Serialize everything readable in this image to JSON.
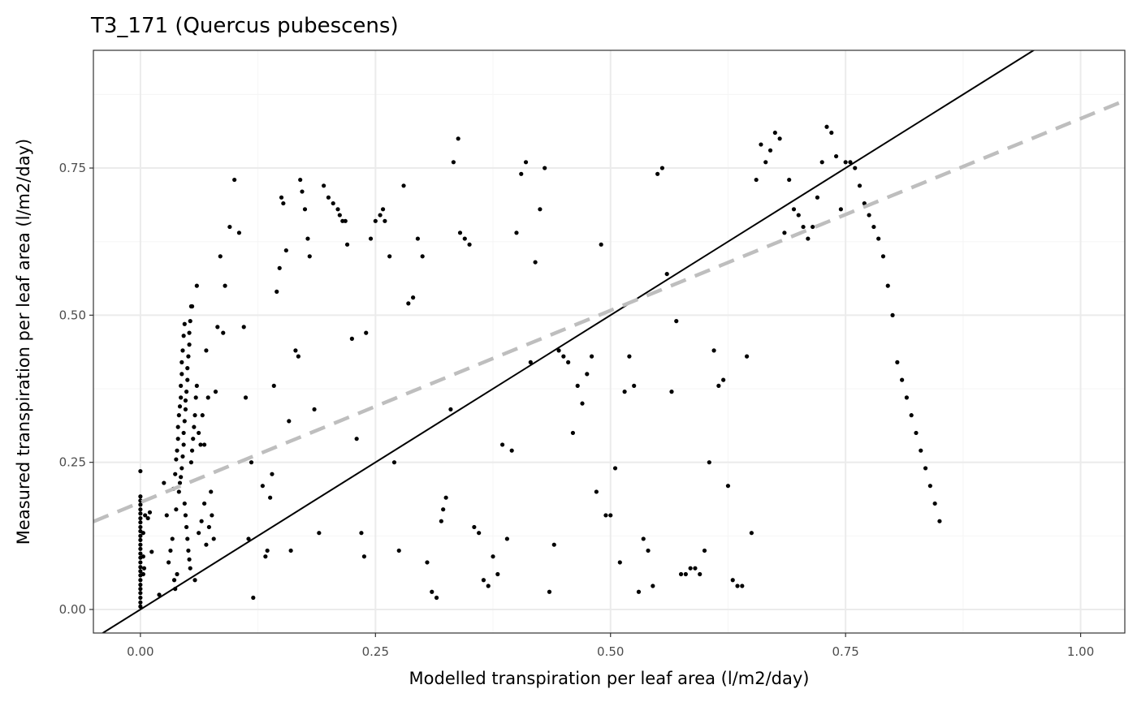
{
  "chart_data": {
    "type": "scatter",
    "title": "T3_171 (Quercus pubescens)",
    "xlabel": "Modelled transpiration per leaf area (l/m2/day)",
    "ylabel": "Measured transpiration per leaf area (l/m2/day)",
    "xlim": [
      -0.05,
      1.047
    ],
    "ylim": [
      -0.04,
      0.95
    ],
    "x_ticks": [
      0.0,
      0.25,
      0.5,
      0.75,
      1.0
    ],
    "x_tick_labels": [
      "0.00",
      "0.25",
      "0.50",
      "0.75",
      "1.00"
    ],
    "y_ticks": [
      0.0,
      0.25,
      0.5,
      0.75
    ],
    "y_tick_labels": [
      "0.00",
      "0.25",
      "0.50",
      "0.75"
    ],
    "grid": true,
    "colors": {
      "points": "#000000",
      "identity_line": "#000000",
      "fit_line": "#bebebe",
      "grid_major": "#ebebeb",
      "grid_minor": "#f5f5f5",
      "panel_border": "#333333"
    },
    "reference_lines": [
      {
        "kind": "identity",
        "style": "solid",
        "intercept": 0.0,
        "slope": 1.0
      },
      {
        "kind": "linear-fit",
        "style": "dashed",
        "intercept": 0.182,
        "slope": 0.652
      }
    ],
    "points": [
      [
        0,
        0.005
      ],
      [
        0,
        0.012
      ],
      [
        0,
        0.02
      ],
      [
        0,
        0.028
      ],
      [
        0,
        0.035
      ],
      [
        0,
        0.042
      ],
      [
        0,
        0.05
      ],
      [
        0,
        0.058
      ],
      [
        0,
        0.065
      ],
      [
        0,
        0.072
      ],
      [
        0,
        0.08
      ],
      [
        0,
        0.088
      ],
      [
        0,
        0.095
      ],
      [
        0,
        0.103
      ],
      [
        0,
        0.11
      ],
      [
        0,
        0.118
      ],
      [
        0,
        0.125
      ],
      [
        0,
        0.133
      ],
      [
        0,
        0.14
      ],
      [
        0,
        0.148
      ],
      [
        0,
        0.155
      ],
      [
        0,
        0.163
      ],
      [
        0,
        0.17
      ],
      [
        0,
        0.178
      ],
      [
        0,
        0.185
      ],
      [
        0,
        0.192
      ],
      [
        0,
        0.235
      ],
      [
        0.003,
        0.06
      ],
      [
        0.003,
        0.09
      ],
      [
        0.003,
        0.13
      ],
      [
        0.005,
        0.16
      ],
      [
        0.004,
        0.07
      ],
      [
        0.008,
        0.155
      ],
      [
        0.01,
        0.165
      ],
      [
        0.012,
        0.098
      ],
      [
        0.02,
        0.025
      ],
      [
        0.025,
        0.215
      ],
      [
        0.028,
        0.16
      ],
      [
        0.03,
        0.08
      ],
      [
        0.032,
        0.1
      ],
      [
        0.034,
        0.12
      ],
      [
        0.036,
        0.05
      ],
      [
        0.037,
        0.035
      ],
      [
        0.038,
        0.17
      ],
      [
        0.039,
        0.06
      ],
      [
        0.035,
        0.205
      ],
      [
        0.037,
        0.23
      ],
      [
        0.038,
        0.255
      ],
      [
        0.039,
        0.27
      ],
      [
        0.04,
        0.29
      ],
      [
        0.04,
        0.31
      ],
      [
        0.041,
        0.33
      ],
      [
        0.042,
        0.345
      ],
      [
        0.043,
        0.36
      ],
      [
        0.043,
        0.38
      ],
      [
        0.044,
        0.4
      ],
      [
        0.044,
        0.42
      ],
      [
        0.045,
        0.44
      ],
      [
        0.046,
        0.465
      ],
      [
        0.047,
        0.485
      ],
      [
        0.041,
        0.2
      ],
      [
        0.042,
        0.215
      ],
      [
        0.043,
        0.225
      ],
      [
        0.044,
        0.24
      ],
      [
        0.045,
        0.26
      ],
      [
        0.046,
        0.28
      ],
      [
        0.046,
        0.3
      ],
      [
        0.047,
        0.32
      ],
      [
        0.048,
        0.34
      ],
      [
        0.048,
        0.355
      ],
      [
        0.049,
        0.37
      ],
      [
        0.05,
        0.39
      ],
      [
        0.05,
        0.41
      ],
      [
        0.051,
        0.43
      ],
      [
        0.052,
        0.45
      ],
      [
        0.052,
        0.47
      ],
      [
        0.053,
        0.49
      ],
      [
        0.054,
        0.515
      ],
      [
        0.055,
        0.515
      ],
      [
        0.047,
        0.18
      ],
      [
        0.048,
        0.16
      ],
      [
        0.049,
        0.14
      ],
      [
        0.05,
        0.12
      ],
      [
        0.051,
        0.1
      ],
      [
        0.052,
        0.085
      ],
      [
        0.053,
        0.07
      ],
      [
        0.054,
        0.25
      ],
      [
        0.055,
        0.27
      ],
      [
        0.056,
        0.29
      ],
      [
        0.057,
        0.31
      ],
      [
        0.058,
        0.33
      ],
      [
        0.059,
        0.36
      ],
      [
        0.06,
        0.38
      ],
      [
        0.06,
        0.55
      ],
      [
        0.062,
        0.3
      ],
      [
        0.064,
        0.28
      ],
      [
        0.066,
        0.33
      ],
      [
        0.068,
        0.28
      ],
      [
        0.07,
        0.44
      ],
      [
        0.072,
        0.36
      ],
      [
        0.075,
        0.2
      ],
      [
        0.078,
        0.12
      ],
      [
        0.08,
        0.37
      ],
      [
        0.082,
        0.48
      ],
      [
        0.085,
        0.6
      ],
      [
        0.088,
        0.47
      ],
      [
        0.09,
        0.55
      ],
      [
        0.058,
        0.05
      ],
      [
        0.062,
        0.13
      ],
      [
        0.065,
        0.15
      ],
      [
        0.068,
        0.18
      ],
      [
        0.07,
        0.11
      ],
      [
        0.073,
        0.14
      ],
      [
        0.076,
        0.16
      ],
      [
        0.095,
        0.65
      ],
      [
        0.1,
        0.73
      ],
      [
        0.105,
        0.64
      ],
      [
        0.11,
        0.48
      ],
      [
        0.112,
        0.36
      ],
      [
        0.115,
        0.12
      ],
      [
        0.118,
        0.25
      ],
      [
        0.12,
        0.02
      ],
      [
        0.13,
        0.21
      ],
      [
        0.133,
        0.09
      ],
      [
        0.135,
        0.1
      ],
      [
        0.138,
        0.19
      ],
      [
        0.14,
        0.23
      ],
      [
        0.142,
        0.38
      ],
      [
        0.145,
        0.54
      ],
      [
        0.148,
        0.58
      ],
      [
        0.15,
        0.7
      ],
      [
        0.152,
        0.69
      ],
      [
        0.155,
        0.61
      ],
      [
        0.158,
        0.32
      ],
      [
        0.16,
        0.1
      ],
      [
        0.165,
        0.44
      ],
      [
        0.168,
        0.43
      ],
      [
        0.17,
        0.73
      ],
      [
        0.172,
        0.71
      ],
      [
        0.175,
        0.68
      ],
      [
        0.178,
        0.63
      ],
      [
        0.18,
        0.6
      ],
      [
        0.185,
        0.34
      ],
      [
        0.19,
        0.13
      ],
      [
        0.195,
        0.72
      ],
      [
        0.2,
        0.7
      ],
      [
        0.205,
        0.69
      ],
      [
        0.21,
        0.68
      ],
      [
        0.212,
        0.67
      ],
      [
        0.215,
        0.66
      ],
      [
        0.218,
        0.66
      ],
      [
        0.22,
        0.62
      ],
      [
        0.225,
        0.46
      ],
      [
        0.23,
        0.29
      ],
      [
        0.235,
        0.13
      ],
      [
        0.238,
        0.09
      ],
      [
        0.24,
        0.47
      ],
      [
        0.245,
        0.63
      ],
      [
        0.25,
        0.66
      ],
      [
        0.255,
        0.67
      ],
      [
        0.258,
        0.68
      ],
      [
        0.26,
        0.66
      ],
      [
        0.265,
        0.6
      ],
      [
        0.27,
        0.25
      ],
      [
        0.275,
        0.1
      ],
      [
        0.28,
        0.72
      ],
      [
        0.285,
        0.52
      ],
      [
        0.29,
        0.53
      ],
      [
        0.295,
        0.63
      ],
      [
        0.3,
        0.6
      ],
      [
        0.305,
        0.08
      ],
      [
        0.31,
        0.03
      ],
      [
        0.315,
        0.02
      ],
      [
        0.32,
        0.15
      ],
      [
        0.322,
        0.17
      ],
      [
        0.325,
        0.19
      ],
      [
        0.33,
        0.34
      ],
      [
        0.333,
        0.76
      ],
      [
        0.338,
        0.8
      ],
      [
        0.34,
        0.64
      ],
      [
        0.345,
        0.63
      ],
      [
        0.35,
        0.62
      ],
      [
        0.355,
        0.14
      ],
      [
        0.36,
        0.13
      ],
      [
        0.365,
        0.05
      ],
      [
        0.37,
        0.04
      ],
      [
        0.375,
        0.09
      ],
      [
        0.38,
        0.06
      ],
      [
        0.385,
        0.28
      ],
      [
        0.39,
        0.12
      ],
      [
        0.395,
        0.27
      ],
      [
        0.4,
        0.64
      ],
      [
        0.405,
        0.74
      ],
      [
        0.41,
        0.76
      ],
      [
        0.415,
        0.42
      ],
      [
        0.42,
        0.59
      ],
      [
        0.425,
        0.68
      ],
      [
        0.43,
        0.75
      ],
      [
        0.435,
        0.03
      ],
      [
        0.44,
        0.11
      ],
      [
        0.445,
        0.44
      ],
      [
        0.45,
        0.43
      ],
      [
        0.455,
        0.42
      ],
      [
        0.46,
        0.3
      ],
      [
        0.465,
        0.38
      ],
      [
        0.47,
        0.35
      ],
      [
        0.475,
        0.4
      ],
      [
        0.48,
        0.43
      ],
      [
        0.485,
        0.2
      ],
      [
        0.49,
        0.62
      ],
      [
        0.495,
        0.16
      ],
      [
        0.5,
        0.16
      ],
      [
        0.505,
        0.24
      ],
      [
        0.51,
        0.08
      ],
      [
        0.515,
        0.37
      ],
      [
        0.52,
        0.43
      ],
      [
        0.525,
        0.38
      ],
      [
        0.53,
        0.03
      ],
      [
        0.535,
        0.12
      ],
      [
        0.54,
        0.1
      ],
      [
        0.545,
        0.04
      ],
      [
        0.55,
        0.74
      ],
      [
        0.555,
        0.75
      ],
      [
        0.56,
        0.57
      ],
      [
        0.565,
        0.37
      ],
      [
        0.57,
        0.49
      ],
      [
        0.575,
        0.06
      ],
      [
        0.58,
        0.06
      ],
      [
        0.585,
        0.07
      ],
      [
        0.59,
        0.07
      ],
      [
        0.595,
        0.06
      ],
      [
        0.6,
        0.1
      ],
      [
        0.605,
        0.25
      ],
      [
        0.61,
        0.44
      ],
      [
        0.615,
        0.38
      ],
      [
        0.62,
        0.39
      ],
      [
        0.625,
        0.21
      ],
      [
        0.63,
        0.05
      ],
      [
        0.635,
        0.04
      ],
      [
        0.64,
        0.04
      ],
      [
        0.645,
        0.43
      ],
      [
        0.65,
        0.13
      ],
      [
        0.655,
        0.73
      ],
      [
        0.66,
        0.79
      ],
      [
        0.665,
        0.76
      ],
      [
        0.67,
        0.78
      ],
      [
        0.675,
        0.81
      ],
      [
        0.68,
        0.8
      ],
      [
        0.685,
        0.64
      ],
      [
        0.69,
        0.73
      ],
      [
        0.695,
        0.68
      ],
      [
        0.7,
        0.67
      ],
      [
        0.705,
        0.65
      ],
      [
        0.71,
        0.63
      ],
      [
        0.715,
        0.65
      ],
      [
        0.72,
        0.7
      ],
      [
        0.725,
        0.76
      ],
      [
        0.73,
        0.82
      ],
      [
        0.735,
        0.81
      ],
      [
        0.74,
        0.77
      ],
      [
        0.745,
        0.68
      ],
      [
        0.75,
        0.76
      ],
      [
        0.755,
        0.76
      ],
      [
        0.76,
        0.75
      ],
      [
        0.765,
        0.72
      ],
      [
        0.77,
        0.69
      ],
      [
        0.775,
        0.67
      ],
      [
        0.78,
        0.65
      ],
      [
        0.785,
        0.63
      ],
      [
        0.79,
        0.6
      ],
      [
        0.795,
        0.55
      ],
      [
        0.8,
        0.5
      ],
      [
        0.805,
        0.42
      ],
      [
        0.81,
        0.39
      ],
      [
        0.815,
        0.36
      ],
      [
        0.82,
        0.33
      ],
      [
        0.825,
        0.3
      ],
      [
        0.83,
        0.27
      ],
      [
        0.835,
        0.24
      ],
      [
        0.84,
        0.21
      ],
      [
        0.845,
        0.18
      ],
      [
        0.85,
        0.15
      ]
    ]
  }
}
